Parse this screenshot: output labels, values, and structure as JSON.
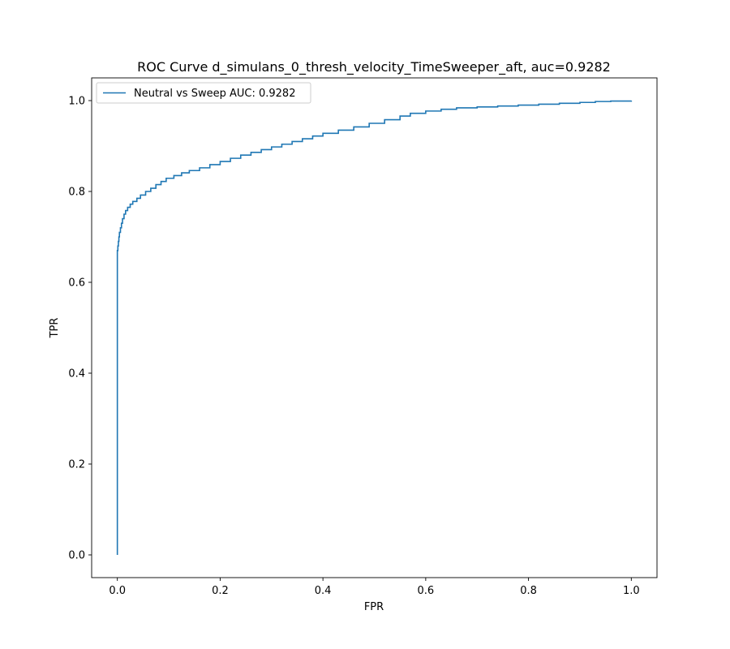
{
  "chart_data": {
    "type": "line",
    "title": "ROC Curve d_simulans_0_thresh_velocity_TimeSweeper_aft, auc=0.9282",
    "xlabel": "FPR",
    "ylabel": "TPR",
    "xlim": [
      -0.05,
      1.05
    ],
    "ylim": [
      -0.05,
      1.05
    ],
    "xticks": [
      0.0,
      0.2,
      0.4,
      0.6,
      0.8,
      1.0
    ],
    "yticks": [
      0.0,
      0.2,
      0.4,
      0.6,
      0.8,
      1.0
    ],
    "xtick_labels": [
      "0.0",
      "0.2",
      "0.4",
      "0.6",
      "0.8",
      "1.0"
    ],
    "ytick_labels": [
      "0.0",
      "0.2",
      "0.4",
      "0.6",
      "0.8",
      "1.0"
    ],
    "grid": false,
    "legend_position": "upper left",
    "series": [
      {
        "name": "Neutral vs Sweep AUC: 0.9282",
        "color": "#1f77b4",
        "x": [
          0.0,
          0.0,
          0.001,
          0.002,
          0.003,
          0.004,
          0.006,
          0.008,
          0.01,
          0.013,
          0.016,
          0.02,
          0.025,
          0.03,
          0.038,
          0.045,
          0.055,
          0.065,
          0.075,
          0.085,
          0.095,
          0.11,
          0.125,
          0.14,
          0.16,
          0.18,
          0.2,
          0.22,
          0.24,
          0.26,
          0.28,
          0.3,
          0.32,
          0.34,
          0.36,
          0.38,
          0.4,
          0.43,
          0.46,
          0.49,
          0.52,
          0.55,
          0.57,
          0.6,
          0.63,
          0.66,
          0.7,
          0.74,
          0.78,
          0.82,
          0.86,
          0.9,
          0.93,
          0.96,
          1.0
        ],
        "y": [
          0.0,
          0.67,
          0.68,
          0.69,
          0.7,
          0.71,
          0.72,
          0.73,
          0.74,
          0.75,
          0.758,
          0.765,
          0.772,
          0.778,
          0.785,
          0.792,
          0.8,
          0.807,
          0.815,
          0.822,
          0.829,
          0.835,
          0.841,
          0.846,
          0.852,
          0.859,
          0.866,
          0.873,
          0.88,
          0.886,
          0.892,
          0.898,
          0.904,
          0.91,
          0.916,
          0.922,
          0.928,
          0.935,
          0.942,
          0.95,
          0.958,
          0.966,
          0.972,
          0.977,
          0.981,
          0.984,
          0.986,
          0.988,
          0.99,
          0.992,
          0.994,
          0.996,
          0.998,
          0.999,
          1.0
        ]
      }
    ]
  }
}
